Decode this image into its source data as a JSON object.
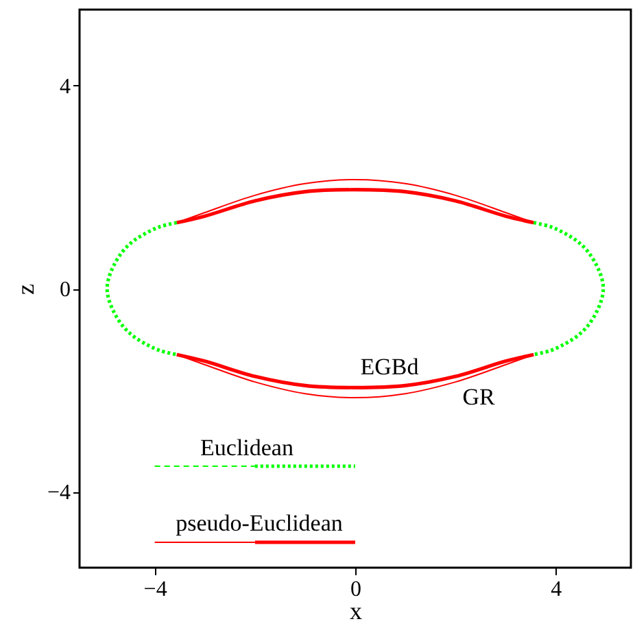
{
  "chart_data": {
    "type": "line",
    "xlabel": "x",
    "ylabel": "z",
    "xlim": [
      -5.5,
      5.5
    ],
    "ylim": [
      -5.5,
      5.5
    ],
    "xticks": [
      -4,
      0,
      4
    ],
    "yticks": [
      -4,
      0,
      4
    ],
    "grid": false,
    "series": [
      {
        "color": "#ff0000",
        "line_style": "solid",
        "x": [
          -3.56,
          -3,
          -2,
          -1,
          0,
          1,
          2,
          3,
          3.56,
          null,
          3.56,
          3,
          2,
          1,
          0,
          -1,
          -2,
          -3,
          -3.56
        ],
        "values": [
          1.3,
          1.5,
          1.84,
          2.07,
          2.15,
          2.07,
          1.84,
          1.5,
          1.3,
          null,
          -1.3,
          -1.5,
          -1.84,
          -2.07,
          -2.15,
          -2.07,
          -1.84,
          -1.5,
          -1.3
        ]
      },
      {
        "color": "#ff0000",
        "line_style": "solid",
        "x": [
          -3.56,
          -3,
          -2,
          -1,
          0,
          1,
          2,
          3,
          3.56,
          null,
          3.56,
          3,
          2,
          1,
          0,
          -1,
          -2,
          -3,
          -3.56
        ],
        "values": [
          1.3,
          1.43,
          1.73,
          1.91,
          1.95,
          1.91,
          1.73,
          1.43,
          1.3,
          null,
          -1.3,
          -1.43,
          -1.73,
          -1.91,
          -1.95,
          -1.91,
          -1.73,
          -1.43,
          -1.3
        ]
      },
      {
        "color": "#00ff00",
        "line_style": "dotted",
        "x": [
          -3.56,
          -3.9,
          -4.2,
          -4.45,
          -4.65,
          -4.82,
          -4.92,
          -4.95,
          -4.92,
          -4.82,
          -4.65,
          -4.45,
          -4.2,
          -3.9,
          -3.56,
          null,
          3.56,
          3.9,
          4.2,
          4.45,
          4.65,
          4.82,
          4.92,
          4.95,
          4.92,
          4.82,
          4.65,
          4.45,
          4.2,
          3.9,
          3.56
        ],
        "values": [
          1.3,
          1.22,
          1.08,
          0.92,
          0.72,
          0.45,
          0.2,
          0,
          -0.2,
          -0.45,
          -0.72,
          -0.92,
          -1.08,
          -1.22,
          -1.3,
          null,
          1.3,
          1.22,
          1.08,
          0.92,
          0.72,
          0.45,
          0.2,
          0,
          -0.2,
          -0.45,
          -0.72,
          -0.92,
          -1.08,
          -1.22,
          -1.3
        ]
      },
      {
        "color": "#00ff00",
        "line_style": "dashed",
        "x": [
          -4,
          -2
        ],
        "values": [
          -3.5,
          -3.5
        ]
      },
      {
        "color": "#00ff00",
        "line_style": "dotted",
        "x": [
          -2,
          0
        ],
        "values": [
          -3.5,
          -3.5
        ]
      },
      {
        "color": "#ff0000",
        "line_style": "solid",
        "x": [
          -4,
          -2
        ],
        "values": [
          -5.0,
          -5.0
        ]
      },
      {
        "color": "#ff0000",
        "line_style": "solid",
        "x": [
          -2,
          0
        ],
        "values": [
          -5.0,
          -5.0
        ]
      }
    ],
    "annotations": [
      "EGBd",
      "GR",
      "Euclidean",
      "pseudo-Euclidean"
    ]
  }
}
